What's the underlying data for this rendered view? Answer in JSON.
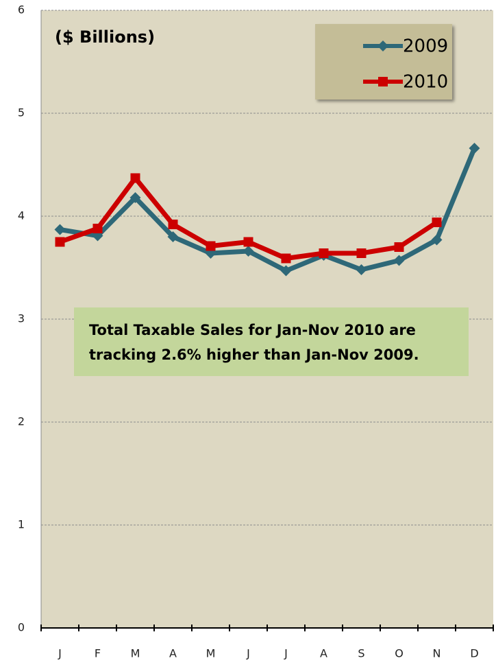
{
  "chart_data": {
    "type": "line",
    "subtitle": "($ Billions)",
    "annotation": [
      "Total Taxable Sales for Jan-Nov 2010 are",
      "tracking 2.6% higher than Jan-Nov 2009."
    ],
    "categories": [
      "J",
      "F",
      "M",
      "A",
      "M",
      "J",
      "J",
      "A",
      "S",
      "O",
      "N",
      "D"
    ],
    "series": [
      {
        "name": "2009",
        "color": "#2e6878",
        "marker": "diamond",
        "values": [
          3.87,
          3.81,
          4.18,
          3.8,
          3.64,
          3.66,
          3.47,
          3.62,
          3.48,
          3.57,
          3.77,
          4.66
        ]
      },
      {
        "name": "2010",
        "color": "#cc0000",
        "marker": "square",
        "values": [
          3.75,
          3.88,
          4.37,
          3.92,
          3.71,
          3.75,
          3.59,
          3.64,
          3.64,
          3.7,
          3.94,
          null
        ]
      }
    ],
    "ylim": [
      0,
      6
    ],
    "yticks": [
      0,
      1,
      2,
      3,
      4,
      5,
      6
    ],
    "grid": true,
    "legend": "upper right"
  }
}
